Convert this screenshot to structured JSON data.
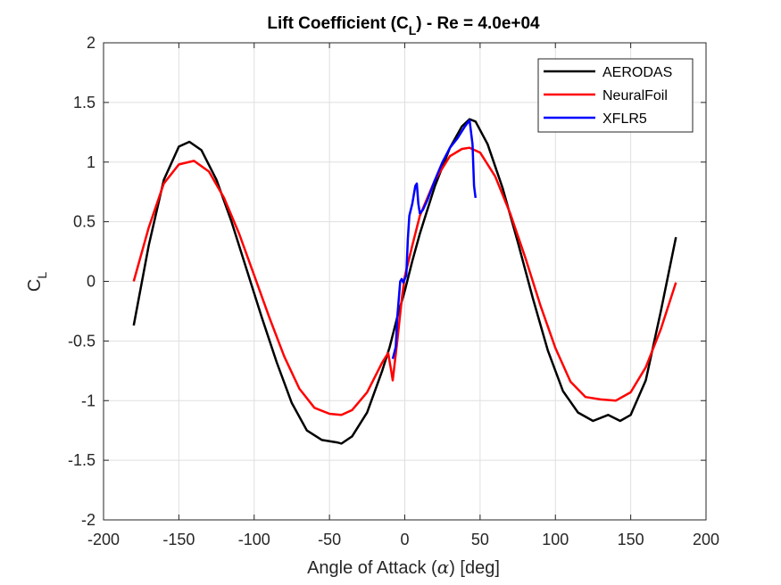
{
  "chart_data": {
    "type": "line",
    "title": "Lift Coefficient (C",
    "title_sub": "L",
    "title_rest": ") - Re = 4.0e+04",
    "xlabel": "Angle of Attack (",
    "xlabel_symbol": "α",
    "xlabel_rest": ") [deg]",
    "ylabel": "C",
    "ylabel_sub": "L",
    "xlim": [
      -200,
      200
    ],
    "ylim": [
      -2,
      2
    ],
    "xticks": [
      -200,
      -150,
      -100,
      -50,
      0,
      50,
      100,
      150,
      200
    ],
    "yticks": [
      -2,
      -1.5,
      -1,
      -0.5,
      0,
      0.5,
      1,
      1.5,
      2
    ],
    "xtick_labels": [
      "-200",
      "-150",
      "-100",
      "-50",
      "0",
      "50",
      "100",
      "150",
      "200"
    ],
    "ytick_labels": [
      "-2",
      "-1.5",
      "-1",
      "-0.5",
      "0",
      "0.5",
      "1",
      "1.5",
      "2"
    ],
    "grid": true,
    "legend_position": "top-right",
    "series": [
      {
        "name": "AERODAS",
        "color": "#000000",
        "x": [
          -180,
          -170,
          -160,
          -150,
          -143,
          -135,
          -125,
          -115,
          -105,
          -95,
          -85,
          -75,
          -65,
          -55,
          -45,
          -42,
          -35,
          -25,
          -15,
          -10,
          -5,
          0,
          5,
          10,
          15,
          20,
          30,
          38,
          43,
          47,
          55,
          65,
          75,
          85,
          95,
          105,
          115,
          125,
          135,
          143,
          150,
          160,
          170,
          180
        ],
        "y": [
          -0.37,
          0.3,
          0.85,
          1.13,
          1.17,
          1.1,
          0.85,
          0.5,
          0.1,
          -0.3,
          -0.68,
          -1.02,
          -1.25,
          -1.33,
          -1.35,
          -1.36,
          -1.3,
          -1.1,
          -0.75,
          -0.55,
          -0.3,
          -0.08,
          0.17,
          0.4,
          0.6,
          0.8,
          1.12,
          1.3,
          1.36,
          1.34,
          1.15,
          0.78,
          0.33,
          -0.14,
          -0.58,
          -0.92,
          -1.1,
          -1.17,
          -1.12,
          -1.17,
          -1.12,
          -0.83,
          -0.25,
          0.37
        ]
      },
      {
        "name": "NeuralFoil",
        "color": "#ff0000",
        "x": [
          -180,
          -170,
          -160,
          -150,
          -140,
          -130,
          -120,
          -110,
          -100,
          -90,
          -80,
          -70,
          -60,
          -50,
          -42,
          -35,
          -25,
          -15,
          -11,
          -9,
          -8,
          -5,
          -2,
          0,
          5,
          10,
          20,
          30,
          38,
          43,
          50,
          60,
          70,
          80,
          90,
          100,
          110,
          120,
          130,
          140,
          150,
          160,
          170,
          180
        ],
        "y": [
          0.0,
          0.45,
          0.82,
          0.98,
          1.01,
          0.92,
          0.7,
          0.4,
          0.05,
          -0.3,
          -0.63,
          -0.9,
          -1.06,
          -1.11,
          -1.12,
          -1.08,
          -0.93,
          -0.68,
          -0.6,
          -0.75,
          -0.83,
          -0.5,
          -0.15,
          0.04,
          0.3,
          0.55,
          0.85,
          1.05,
          1.11,
          1.12,
          1.08,
          0.88,
          0.57,
          0.2,
          -0.2,
          -0.56,
          -0.84,
          -0.97,
          -0.99,
          -1.0,
          -0.93,
          -0.72,
          -0.4,
          -0.01
        ]
      },
      {
        "name": "XFLR5",
        "color": "#0000ff",
        "x": [
          -8,
          -6,
          -5,
          -3,
          -2,
          -1,
          0,
          1,
          2,
          3,
          5,
          7,
          8,
          9,
          10,
          12,
          15,
          20,
          25,
          30,
          35,
          40,
          43,
          45,
          46,
          47
        ],
        "y": [
          -0.65,
          -0.55,
          -0.3,
          0.0,
          0.02,
          -0.01,
          0.02,
          0.05,
          0.35,
          0.55,
          0.65,
          0.8,
          0.82,
          0.65,
          0.57,
          0.6,
          0.68,
          0.85,
          1.0,
          1.12,
          1.2,
          1.3,
          1.35,
          1.15,
          0.8,
          0.7
        ]
      }
    ]
  }
}
